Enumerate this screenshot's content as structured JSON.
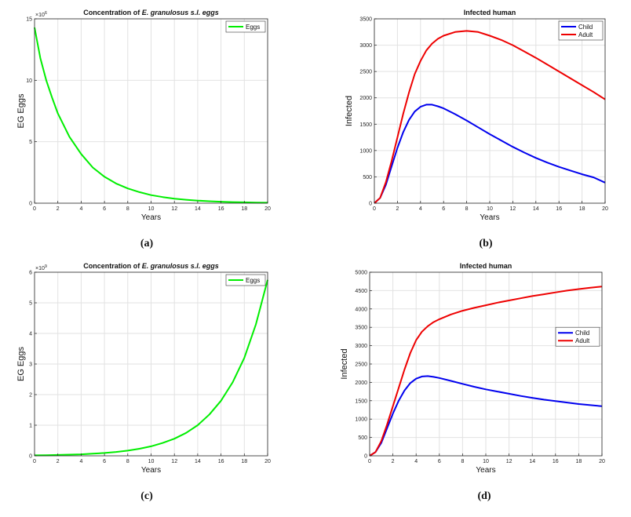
{
  "chart_data": [
    {
      "type": "line",
      "title_prefix": "Concentration of",
      "title_emph": "E. granulosus s.l. eggs",
      "xlabel": "Years",
      "ylabel": "EG Eggs",
      "xlim": [
        0,
        20
      ],
      "ylim": [
        0,
        15
      ],
      "y_exponent": "×10",
      "y_exponent_power": "6",
      "xticks": [
        "0",
        "2",
        "4",
        "6",
        "8",
        "10",
        "12",
        "14",
        "16",
        "18",
        "20"
      ],
      "yticks": [
        "0",
        "5",
        "10",
        "15"
      ],
      "grid": true,
      "legend_position": "top-right",
      "caption": "(a)",
      "series": [
        {
          "name": "Eggs",
          "color": "#00ee00",
          "x": [
            0,
            0.5,
            1,
            1.5,
            2,
            3,
            4,
            5,
            6,
            7,
            8,
            9,
            10,
            11,
            12,
            13,
            14,
            15,
            16,
            17,
            18,
            19,
            20
          ],
          "y": [
            14.3,
            11.8,
            10.0,
            8.6,
            7.3,
            5.4,
            4.0,
            2.9,
            2.15,
            1.6,
            1.2,
            0.9,
            0.66,
            0.5,
            0.37,
            0.28,
            0.21,
            0.16,
            0.12,
            0.09,
            0.07,
            0.05,
            0.04
          ]
        }
      ]
    },
    {
      "type": "line",
      "title": "Infected human",
      "xlabel": "Years",
      "ylabel": "Infected",
      "xlim": [
        0,
        20
      ],
      "ylim": [
        0,
        3500
      ],
      "xticks": [
        "0",
        "2",
        "4",
        "6",
        "8",
        "10",
        "12",
        "14",
        "16",
        "18",
        "20"
      ],
      "yticks": [
        "0",
        "500",
        "1000",
        "1500",
        "2000",
        "2500",
        "3000",
        "3500"
      ],
      "grid": true,
      "legend_position": "top-right",
      "caption": "(b)",
      "series": [
        {
          "name": "Child",
          "color": "#0000ee",
          "x": [
            0,
            0.5,
            1,
            1.5,
            2,
            2.5,
            3,
            3.5,
            4,
            4.5,
            5,
            5.5,
            6,
            7,
            8,
            9,
            10,
            11,
            12,
            13,
            14,
            15,
            16,
            17,
            18,
            19,
            20
          ],
          "y": [
            0,
            100,
            350,
            700,
            1050,
            1350,
            1580,
            1740,
            1830,
            1870,
            1870,
            1840,
            1800,
            1690,
            1570,
            1440,
            1310,
            1190,
            1070,
            960,
            860,
            770,
            690,
            620,
            550,
            490,
            390
          ]
        },
        {
          "name": "Adult",
          "color": "#ee0000",
          "x": [
            0,
            0.5,
            1,
            1.5,
            2,
            2.5,
            3,
            3.5,
            4,
            4.5,
            5,
            5.5,
            6,
            7,
            8,
            9,
            10,
            11,
            12,
            13,
            14,
            15,
            16,
            17,
            18,
            19,
            20
          ],
          "y": [
            0,
            100,
            400,
            800,
            1250,
            1700,
            2100,
            2450,
            2700,
            2900,
            3030,
            3120,
            3180,
            3250,
            3270,
            3250,
            3180,
            3100,
            3000,
            2880,
            2760,
            2630,
            2500,
            2370,
            2240,
            2110,
            1970
          ]
        }
      ]
    },
    {
      "type": "line",
      "title_prefix": "Concentration of",
      "title_emph": "E. granulosus s.l. eggs",
      "xlabel": "Years",
      "ylabel": "EG Eggs",
      "xlim": [
        0,
        20
      ],
      "ylim": [
        0,
        6
      ],
      "y_exponent": "×10",
      "y_exponent_power": "9",
      "xticks": [
        "0",
        "2",
        "4",
        "6",
        "8",
        "10",
        "12",
        "14",
        "16",
        "18",
        "20"
      ],
      "yticks": [
        "0",
        "1",
        "2",
        "3",
        "4",
        "5",
        "6"
      ],
      "grid": true,
      "legend_position": "top-right",
      "caption": "(c)",
      "series": [
        {
          "name": "Eggs",
          "color": "#00ee00",
          "x": [
            0,
            1,
            2,
            3,
            4,
            5,
            6,
            7,
            8,
            9,
            10,
            11,
            12,
            13,
            14,
            15,
            16,
            17,
            18,
            19,
            20
          ],
          "y": [
            0.015,
            0.02,
            0.028,
            0.038,
            0.05,
            0.068,
            0.092,
            0.125,
            0.17,
            0.23,
            0.31,
            0.42,
            0.56,
            0.75,
            1.0,
            1.35,
            1.8,
            2.4,
            3.2,
            4.3,
            5.75
          ]
        }
      ]
    },
    {
      "type": "line",
      "title": "Infected human",
      "xlabel": "Years",
      "ylabel": "Infected",
      "xlim": [
        0,
        20
      ],
      "ylim": [
        0,
        5000
      ],
      "xticks": [
        "0",
        "2",
        "4",
        "6",
        "8",
        "10",
        "12",
        "14",
        "16",
        "18",
        "20"
      ],
      "yticks": [
        "0",
        "500",
        "1000",
        "1500",
        "2000",
        "2500",
        "3000",
        "3500",
        "4000",
        "4500",
        "5000"
      ],
      "grid": true,
      "legend_position": "right",
      "caption": "(d)",
      "series": [
        {
          "name": "Child",
          "color": "#0000ee",
          "x": [
            0,
            0.5,
            1,
            1.5,
            2,
            2.5,
            3,
            3.5,
            4,
            4.5,
            5,
            5.5,
            6,
            7,
            8,
            9,
            10,
            11,
            12,
            13,
            14,
            15,
            16,
            17,
            18,
            19,
            20
          ],
          "y": [
            0,
            100,
            350,
            750,
            1150,
            1500,
            1780,
            1980,
            2100,
            2160,
            2170,
            2150,
            2120,
            2040,
            1960,
            1880,
            1810,
            1750,
            1690,
            1630,
            1580,
            1530,
            1490,
            1450,
            1410,
            1380,
            1350
          ]
        },
        {
          "name": "Adult",
          "color": "#ee0000",
          "x": [
            0,
            0.5,
            1,
            1.5,
            2,
            2.5,
            3,
            3.5,
            4,
            4.5,
            5,
            5.5,
            6,
            7,
            8,
            9,
            10,
            11,
            12,
            13,
            14,
            15,
            16,
            17,
            18,
            19,
            20
          ],
          "y": [
            0,
            100,
            400,
            850,
            1350,
            1850,
            2350,
            2800,
            3150,
            3380,
            3530,
            3640,
            3720,
            3850,
            3950,
            4030,
            4100,
            4170,
            4230,
            4290,
            4350,
            4400,
            4450,
            4500,
            4540,
            4580,
            4610
          ]
        }
      ]
    }
  ]
}
